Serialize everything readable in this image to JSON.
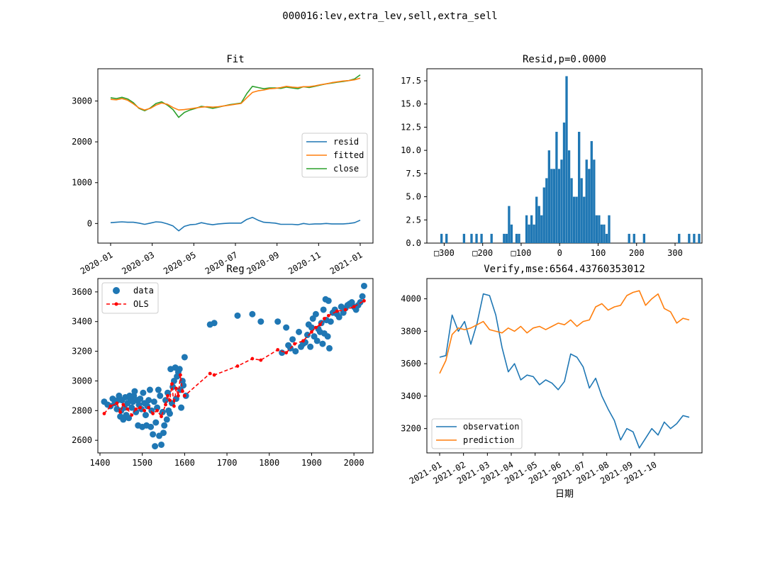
{
  "figure": {
    "suptitle": "000016:lev,extra_lev,sell,extra_sell"
  },
  "colors": {
    "blue": "#1f77b4",
    "orange": "#ff7f0e",
    "green": "#2ca02c",
    "red": "#ff0000"
  },
  "chart_data": [
    {
      "id": "fit",
      "type": "line",
      "title": "Fit",
      "x_ticks": [
        "2020-01",
        "2020-03",
        "2020-05",
        "2020-07",
        "2020-09",
        "2020-11",
        "2021-01"
      ],
      "ylim": [
        -480,
        3790
      ],
      "y_ticks": [
        {
          "v": 0,
          "label": "0"
        },
        {
          "v": 1000,
          "label": "1000"
        },
        {
          "v": 2000,
          "label": "2000"
        },
        {
          "v": 3000,
          "label": "3000"
        }
      ],
      "legend": [
        {
          "label": "resid",
          "color": "blue"
        },
        {
          "label": "fitted",
          "color": "orange"
        },
        {
          "label": "close",
          "color": "green"
        }
      ],
      "series": [
        {
          "name": "close",
          "color": "green",
          "values": [
            3080,
            3060,
            3090,
            3050,
            2960,
            2820,
            2760,
            2830,
            2940,
            2980,
            2900,
            2790,
            2600,
            2720,
            2780,
            2820,
            2870,
            2850,
            2820,
            2850,
            2880,
            2910,
            2930,
            2950,
            3180,
            3360,
            3330,
            3300,
            3320,
            3320,
            3310,
            3340,
            3320,
            3300,
            3350,
            3330,
            3360,
            3390,
            3420,
            3440,
            3460,
            3480,
            3500,
            3540,
            3640
          ]
        },
        {
          "name": "fitted",
          "color": "orange",
          "values": [
            3040,
            3030,
            3060,
            3020,
            2930,
            2830,
            2780,
            2820,
            2900,
            2950,
            2920,
            2840,
            2780,
            2790,
            2810,
            2830,
            2850,
            2860,
            2850,
            2860,
            2880,
            2900,
            2920,
            2940,
            3080,
            3210,
            3250,
            3270,
            3300,
            3310,
            3330,
            3360,
            3340,
            3330,
            3350,
            3350,
            3370,
            3400,
            3420,
            3450,
            3470,
            3490,
            3500,
            3520,
            3560
          ]
        },
        {
          "name": "resid",
          "color": "blue",
          "values": [
            20,
            30,
            40,
            30,
            30,
            10,
            -20,
            10,
            40,
            30,
            -10,
            -60,
            -180,
            -70,
            -30,
            -20,
            20,
            -10,
            -30,
            -10,
            0,
            10,
            10,
            10,
            100,
            150,
            80,
            30,
            20,
            10,
            -20,
            -20,
            -20,
            -30,
            0,
            -20,
            -10,
            -10,
            0,
            -10,
            -10,
            -10,
            0,
            20,
            80
          ]
        }
      ]
    },
    {
      "id": "resid",
      "type": "bar",
      "title": "Resid,p=0.0000",
      "xlim": [
        -345,
        370
      ],
      "ylim": [
        0,
        18.8
      ],
      "x_ticks": [
        {
          "v": -300,
          "label": "□300"
        },
        {
          "v": -200,
          "label": "□200"
        },
        {
          "v": -100,
          "label": "□100"
        },
        {
          "v": 0,
          "label": "0"
        },
        {
          "v": 100,
          "label": "100"
        },
        {
          "v": 200,
          "label": "200"
        },
        {
          "v": 300,
          "label": "300"
        }
      ],
      "y_ticks": [
        {
          "v": 0,
          "label": "0.0"
        },
        {
          "v": 2.5,
          "label": "2.5"
        },
        {
          "v": 5,
          "label": "5.0"
        },
        {
          "v": 7.5,
          "label": "7.5"
        },
        {
          "v": 10,
          "label": "10.0"
        },
        {
          "v": 12.5,
          "label": "12.5"
        },
        {
          "v": 15,
          "label": "15.0"
        },
        {
          "v": 17.5,
          "label": "17.5"
        }
      ],
      "bin_start": -310,
      "bin_width": 6.5,
      "values": [
        1,
        0,
        1,
        0,
        0,
        0,
        0,
        0,
        0,
        1,
        0,
        0,
        1,
        0,
        1,
        0,
        1,
        0,
        0,
        0,
        1,
        0,
        0,
        0,
        0,
        1,
        1,
        4,
        2,
        0,
        1,
        1,
        0,
        0,
        3,
        2,
        3,
        2,
        5,
        4,
        3,
        6,
        7,
        10,
        8,
        8,
        12,
        8,
        9,
        13,
        18,
        10,
        7,
        5,
        5,
        12,
        7,
        5,
        9,
        8,
        11,
        9,
        3,
        3,
        2,
        2,
        1,
        3,
        0,
        0,
        0,
        0,
        0,
        0,
        0,
        1,
        0,
        1,
        0,
        0,
        0,
        1,
        0,
        0,
        0,
        0,
        0,
        0,
        0,
        0,
        0,
        0,
        0,
        0,
        0,
        1,
        0,
        0,
        0,
        1,
        0,
        1,
        0,
        1
      ]
    },
    {
      "id": "reg",
      "type": "scatter",
      "title": "Reg",
      "xlim": [
        1395,
        2045
      ],
      "ylim": [
        2515,
        3690
      ],
      "x_ticks": [
        {
          "v": 1400,
          "label": "1400"
        },
        {
          "v": 1500,
          "label": "1500"
        },
        {
          "v": 1600,
          "label": "1600"
        },
        {
          "v": 1700,
          "label": "1700"
        },
        {
          "v": 1800,
          "label": "1800"
        },
        {
          "v": 1900,
          "label": "1900"
        },
        {
          "v": 2000,
          "label": "2000"
        }
      ],
      "y_ticks": [
        {
          "v": 2600,
          "label": "2600"
        },
        {
          "v": 2800,
          "label": "2800"
        },
        {
          "v": 3000,
          "label": "3000"
        },
        {
          "v": 3200,
          "label": "3200"
        },
        {
          "v": 3400,
          "label": "3400"
        },
        {
          "v": 3600,
          "label": "3600"
        }
      ],
      "legend": [
        {
          "label": "data",
          "color": "blue",
          "marker": "dot"
        },
        {
          "label": "OLS",
          "color": "red",
          "marker": "dashed"
        }
      ],
      "scatter": [
        [
          1410,
          2860
        ],
        [
          1418,
          2840
        ],
        [
          1425,
          2830
        ],
        [
          1430,
          2880
        ],
        [
          1435,
          2850
        ],
        [
          1440,
          2810
        ],
        [
          1442,
          2870
        ],
        [
          1445,
          2900
        ],
        [
          1448,
          2760
        ],
        [
          1450,
          2800
        ],
        [
          1452,
          2870
        ],
        [
          1455,
          2740
        ],
        [
          1458,
          2820
        ],
        [
          1460,
          2890
        ],
        [
          1462,
          2770
        ],
        [
          1465,
          2850
        ],
        [
          1468,
          2750
        ],
        [
          1470,
          2900
        ],
        [
          1472,
          2880
        ],
        [
          1475,
          2820
        ],
        [
          1478,
          2860
        ],
        [
          1480,
          2900
        ],
        [
          1482,
          2930
        ],
        [
          1485,
          2790
        ],
        [
          1488,
          2870
        ],
        [
          1490,
          2700
        ],
        [
          1492,
          2840
        ],
        [
          1495,
          2880
        ],
        [
          1498,
          2810
        ],
        [
          1500,
          2690
        ],
        [
          1502,
          2920
        ],
        [
          1505,
          2850
        ],
        [
          1508,
          2770
        ],
        [
          1510,
          2700
        ],
        [
          1512,
          2830
        ],
        [
          1515,
          2870
        ],
        [
          1518,
          2940
        ],
        [
          1520,
          2690
        ],
        [
          1522,
          2800
        ],
        [
          1525,
          2640
        ],
        [
          1528,
          2860
        ],
        [
          1530,
          2560
        ],
        [
          1532,
          2720
        ],
        [
          1535,
          2820
        ],
        [
          1538,
          2940
        ],
        [
          1540,
          2630
        ],
        [
          1542,
          2900
        ],
        [
          1545,
          2570
        ],
        [
          1548,
          2790
        ],
        [
          1550,
          2650
        ],
        [
          1552,
          2700
        ],
        [
          1555,
          2870
        ],
        [
          1558,
          2740
        ],
        [
          1560,
          2920
        ],
        [
          1562,
          2800
        ],
        [
          1565,
          2780
        ],
        [
          1567,
          3080
        ],
        [
          1570,
          2850
        ],
        [
          1572,
          2960
        ],
        [
          1575,
          3000
        ],
        [
          1578,
          3090
        ],
        [
          1580,
          2880
        ],
        [
          1582,
          3030
        ],
        [
          1585,
          3060
        ],
        [
          1588,
          3080
        ],
        [
          1590,
          2940
        ],
        [
          1592,
          2820
        ],
        [
          1595,
          3000
        ],
        [
          1597,
          2970
        ],
        [
          1600,
          3160
        ],
        [
          1603,
          2900
        ],
        [
          1660,
          3380
        ],
        [
          1670,
          3390
        ],
        [
          1725,
          3440
        ],
        [
          1760,
          3450
        ],
        [
          1780,
          3400
        ],
        [
          1820,
          3400
        ],
        [
          1830,
          3190
        ],
        [
          1840,
          3360
        ],
        [
          1845,
          3240
        ],
        [
          1850,
          3220
        ],
        [
          1855,
          3280
        ],
        [
          1862,
          3200
        ],
        [
          1870,
          3330
        ],
        [
          1875,
          3230
        ],
        [
          1880,
          3250
        ],
        [
          1885,
          3260
        ],
        [
          1890,
          3310
        ],
        [
          1893,
          3380
        ],
        [
          1897,
          3230
        ],
        [
          1900,
          3360
        ],
        [
          1903,
          3420
        ],
        [
          1906,
          3300
        ],
        [
          1910,
          3450
        ],
        [
          1913,
          3270
        ],
        [
          1916,
          3350
        ],
        [
          1920,
          3330
        ],
        [
          1923,
          3390
        ],
        [
          1926,
          3250
        ],
        [
          1928,
          3480
        ],
        [
          1930,
          3320
        ],
        [
          1933,
          3550
        ],
        [
          1935,
          3410
        ],
        [
          1938,
          3300
        ],
        [
          1940,
          3540
        ],
        [
          1942,
          3220
        ],
        [
          1945,
          3400
        ],
        [
          1950,
          3460
        ],
        [
          1955,
          3480
        ],
        [
          1960,
          3450
        ],
        [
          1965,
          3430
        ],
        [
          1970,
          3500
        ],
        [
          1975,
          3460
        ],
        [
          1980,
          3490
        ],
        [
          1985,
          3510
        ],
        [
          1990,
          3520
        ],
        [
          1995,
          3530
        ],
        [
          2000,
          3500
        ],
        [
          2005,
          3480
        ],
        [
          2010,
          3510
        ],
        [
          2015,
          3530
        ],
        [
          2020,
          3570
        ],
        [
          2024,
          3640
        ]
      ],
      "ols": [
        [
          1410,
          2780
        ],
        [
          1425,
          2830
        ],
        [
          1440,
          2850
        ],
        [
          1448,
          2790
        ],
        [
          1455,
          2840
        ],
        [
          1465,
          2810
        ],
        [
          1475,
          2770
        ],
        [
          1485,
          2810
        ],
        [
          1495,
          2820
        ],
        [
          1505,
          2800
        ],
        [
          1515,
          2820
        ],
        [
          1525,
          2780
        ],
        [
          1535,
          2800
        ],
        [
          1545,
          2760
        ],
        [
          1555,
          2840
        ],
        [
          1560,
          2900
        ],
        [
          1565,
          2870
        ],
        [
          1570,
          2980
        ],
        [
          1575,
          2830
        ],
        [
          1580,
          2950
        ],
        [
          1585,
          2900
        ],
        [
          1590,
          3040
        ],
        [
          1595,
          2930
        ],
        [
          1600,
          2900
        ],
        [
          1660,
          3050
        ],
        [
          1670,
          3040
        ],
        [
          1725,
          3100
        ],
        [
          1760,
          3150
        ],
        [
          1780,
          3140
        ],
        [
          1820,
          3210
        ],
        [
          1840,
          3190
        ],
        [
          1860,
          3250
        ],
        [
          1880,
          3270
        ],
        [
          1900,
          3330
        ],
        [
          1910,
          3360
        ],
        [
          1920,
          3380
        ],
        [
          1930,
          3420
        ],
        [
          1940,
          3440
        ],
        [
          1960,
          3470
        ],
        [
          1980,
          3480
        ],
        [
          2000,
          3500
        ],
        [
          2024,
          3540
        ]
      ]
    },
    {
      "id": "verify",
      "type": "line",
      "title": "Verify,mse:6564.43760353012",
      "xlabel": "日期",
      "x_ticks": [
        "2021-01",
        "2021-02",
        "2021-03",
        "2021-04",
        "2021-05",
        "2021-06",
        "2021-07",
        "2021-08",
        "2021-09",
        "2021-10"
      ],
      "ylim": [
        3050,
        4125
      ],
      "y_ticks": [
        {
          "v": 3200,
          "label": "3200"
        },
        {
          "v": 3400,
          "label": "3400"
        },
        {
          "v": 3600,
          "label": "3600"
        },
        {
          "v": 3800,
          "label": "3800"
        },
        {
          "v": 4000,
          "label": "4000"
        }
      ],
      "legend": [
        {
          "label": "observation",
          "color": "blue"
        },
        {
          "label": "prediction",
          "color": "orange"
        }
      ],
      "series": [
        {
          "name": "observation",
          "color": "blue",
          "values": [
            3640,
            3650,
            3900,
            3800,
            3860,
            3720,
            3850,
            4030,
            4020,
            3900,
            3700,
            3550,
            3600,
            3500,
            3530,
            3520,
            3470,
            3500,
            3480,
            3440,
            3490,
            3660,
            3640,
            3580,
            3450,
            3510,
            3400,
            3320,
            3250,
            3130,
            3200,
            3180,
            3080,
            3140,
            3200,
            3160,
            3240,
            3200,
            3230,
            3280,
            3270
          ]
        },
        {
          "name": "prediction",
          "color": "orange",
          "values": [
            3540,
            3620,
            3780,
            3820,
            3810,
            3820,
            3840,
            3860,
            3810,
            3800,
            3790,
            3820,
            3800,
            3830,
            3790,
            3820,
            3830,
            3810,
            3830,
            3850,
            3840,
            3870,
            3830,
            3860,
            3870,
            3950,
            3970,
            3930,
            3950,
            3960,
            4020,
            4040,
            4050,
            3960,
            4000,
            4030,
            3940,
            3920,
            3850,
            3880,
            3870
          ]
        }
      ]
    }
  ]
}
